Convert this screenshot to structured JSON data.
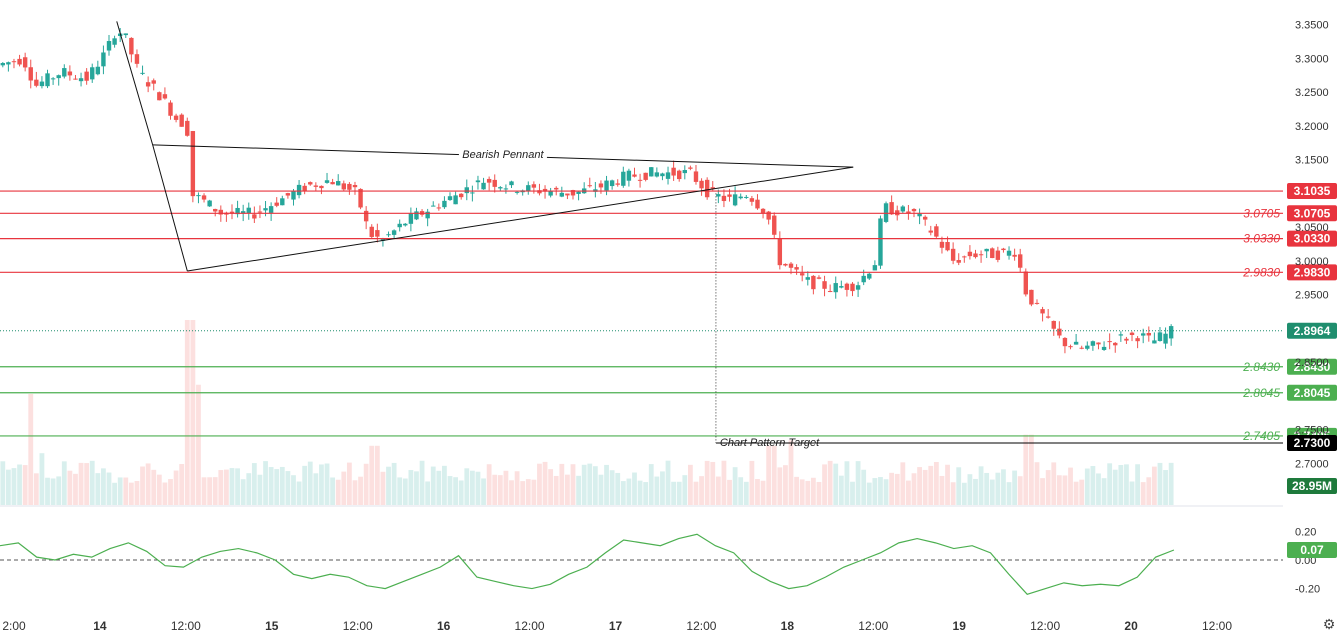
{
  "colors": {
    "up": "#26a69a",
    "down": "#ef5350",
    "resistance": "#e8343e",
    "support": "#4caf50",
    "target": "#000000",
    "last_price": "#1f8e6e",
    "indicator": "#4caf50"
  },
  "settings_icon": "gear-icon",
  "chart_data": {
    "type": "candlestick",
    "y_range": [
      2.69,
      3.36
    ],
    "x_tick_labels": [
      "2:00",
      "14",
      "12:00",
      "15",
      "12:00",
      "16",
      "12:00",
      "17",
      "12:00",
      "18",
      "12:00",
      "19",
      "12:00",
      "20",
      "12:00"
    ],
    "price_ticks": [
      "3.3500",
      "3.3000",
      "3.2500",
      "3.2000",
      "3.1500",
      "3.0500",
      "3.0000",
      "2.9500",
      "2.8500",
      "2.7500",
      "2.7000"
    ],
    "resistance_levels": [
      {
        "value": 3.1035,
        "label": "3.1035",
        "side_label": ""
      },
      {
        "value": 3.0705,
        "label": "3.0705",
        "side_label": "3.0705"
      },
      {
        "value": 3.033,
        "label": "3.0330",
        "side_label": "3.0330"
      },
      {
        "value": 2.983,
        "label": "2.9830",
        "side_label": "2.9830"
      }
    ],
    "support_levels": [
      {
        "value": 2.843,
        "label": "2.8430",
        "side_label": "2.8430"
      },
      {
        "value": 2.8045,
        "label": "2.8045",
        "side_label": "2.8045"
      },
      {
        "value": 2.7405,
        "label": "2.7405",
        "side_label": "2.7405"
      }
    ],
    "target_level": {
      "value": 2.73,
      "label": "2.7300",
      "annotation": "Chart Pattern Target"
    },
    "last_price": {
      "value": 2.8964,
      "label": "2.8964"
    },
    "volume_label": "28.95M",
    "pattern": {
      "name": "Bearish Pennant",
      "pole": [
        {
          "t": 0.091,
          "p": 3.355
        },
        {
          "t": 0.119,
          "p": 3.172
        },
        {
          "t": 0.146,
          "p": 2.985
        }
      ],
      "upper_line": [
        {
          "t": 0.119,
          "p": 3.172
        },
        {
          "t": 0.665,
          "p": 3.139
        }
      ],
      "lower_line": [
        {
          "t": 0.146,
          "p": 2.985
        },
        {
          "t": 0.665,
          "p": 3.139
        }
      ],
      "target_drop_t": 0.558
    },
    "price_path": [
      [
        0.0,
        3.29
      ],
      [
        0.02,
        3.3
      ],
      [
        0.03,
        3.26
      ],
      [
        0.05,
        3.28
      ],
      [
        0.07,
        3.27
      ],
      [
        0.085,
        3.31
      ],
      [
        0.093,
        3.345
      ],
      [
        0.1,
        3.33
      ],
      [
        0.11,
        3.28
      ],
      [
        0.125,
        3.25
      ],
      [
        0.14,
        3.21
      ],
      [
        0.148,
        3.2
      ],
      [
        0.15,
        3.1
      ],
      [
        0.16,
        3.09
      ],
      [
        0.175,
        3.07
      ],
      [
        0.2,
        3.07
      ],
      [
        0.22,
        3.09
      ],
      [
        0.24,
        3.11
      ],
      [
        0.26,
        3.12
      ],
      [
        0.28,
        3.1
      ],
      [
        0.29,
        3.04
      ],
      [
        0.3,
        3.03
      ],
      [
        0.32,
        3.06
      ],
      [
        0.34,
        3.08
      ],
      [
        0.36,
        3.1
      ],
      [
        0.38,
        3.12
      ],
      [
        0.4,
        3.11
      ],
      [
        0.42,
        3.105
      ],
      [
        0.45,
        3.1
      ],
      [
        0.47,
        3.11
      ],
      [
        0.49,
        3.125
      ],
      [
        0.51,
        3.13
      ],
      [
        0.54,
        3.13
      ],
      [
        0.555,
        3.1
      ],
      [
        0.57,
        3.09
      ],
      [
        0.585,
        3.1
      ],
      [
        0.6,
        3.07
      ],
      [
        0.61,
        3.0
      ],
      [
        0.63,
        2.97
      ],
      [
        0.65,
        2.96
      ],
      [
        0.67,
        2.965
      ],
      [
        0.685,
        3.0
      ],
      [
        0.69,
        3.08
      ],
      [
        0.7,
        3.075
      ],
      [
        0.715,
        3.07
      ],
      [
        0.73,
        3.04
      ],
      [
        0.745,
        3.0
      ],
      [
        0.76,
        3.01
      ],
      [
        0.78,
        3.01
      ],
      [
        0.795,
        3.015
      ],
      [
        0.8,
        2.96
      ],
      [
        0.81,
        2.93
      ],
      [
        0.83,
        2.88
      ],
      [
        0.845,
        2.87
      ],
      [
        0.86,
        2.875
      ],
      [
        0.875,
        2.885
      ],
      [
        0.89,
        2.89
      ],
      [
        0.9,
        2.88
      ],
      [
        0.915,
        2.895
      ]
    ],
    "volume_spikes": [
      {
        "t": 0.022,
        "v": 0.6
      },
      {
        "t": 0.03,
        "v": 0.28
      },
      {
        "t": 0.146,
        "v": 1.0
      },
      {
        "t": 0.152,
        "v": 0.65
      },
      {
        "t": 0.29,
        "v": 0.32
      },
      {
        "t": 0.6,
        "v": 0.32
      },
      {
        "t": 0.615,
        "v": 0.35
      },
      {
        "t": 0.8,
        "v": 0.38
      }
    ],
    "indicator": {
      "ticks": [
        "0.20",
        "0.00",
        "-0.20"
      ],
      "range": [
        -0.28,
        0.28
      ],
      "current": 0.07,
      "current_label": "0.07",
      "values": [
        0.1,
        0.12,
        0.02,
        0.0,
        0.04,
        0.02,
        0.08,
        0.12,
        0.06,
        -0.04,
        -0.05,
        0.02,
        0.06,
        0.08,
        0.05,
        0.0,
        -0.1,
        -0.13,
        -0.1,
        -0.12,
        -0.18,
        -0.2,
        -0.15,
        -0.1,
        -0.05,
        0.03,
        -0.12,
        -0.15,
        -0.18,
        -0.2,
        -0.17,
        -0.1,
        -0.05,
        0.05,
        0.14,
        0.12,
        0.1,
        0.15,
        0.18,
        0.1,
        0.05,
        -0.08,
        -0.15,
        -0.2,
        -0.18,
        -0.12,
        -0.05,
        0.0,
        0.05,
        0.12,
        0.15,
        0.12,
        0.08,
        0.1,
        0.05,
        -0.1,
        -0.24,
        -0.2,
        -0.16,
        -0.18,
        -0.17,
        -0.18,
        -0.12,
        0.02,
        0.07
      ]
    }
  }
}
